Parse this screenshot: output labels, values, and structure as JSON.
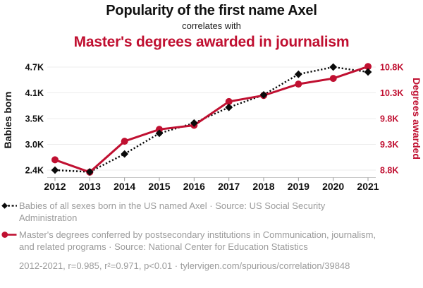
{
  "header": {
    "title": "Popularity of the first name Axel",
    "subtitle": "correlates with",
    "secondary_title": "Master's degrees awarded in journalism"
  },
  "colors": {
    "red": "#c01031",
    "series_black": "#0a0a0a",
    "gray_text": "#9b9b9b",
    "grid": "#ececec",
    "axis_line": "#c9c9c9"
  },
  "chart_data": {
    "type": "line",
    "x": [
      2012,
      2013,
      2014,
      2015,
      2016,
      2017,
      2018,
      2019,
      2020,
      2021
    ],
    "series": [
      {
        "name": "Babies of all sexes born in the US named Axel",
        "axis": "left",
        "style": "dashed-diamond",
        "color": "#0a0a0a",
        "values": [
          2400,
          2360,
          2760,
          3220,
          3450,
          3800,
          4080,
          4540,
          4700,
          4590
        ]
      },
      {
        "name": "Master's degrees conferred in Communication, journalism, and related programs",
        "axis": "right",
        "style": "solid-circle",
        "color": "#c01031",
        "values": [
          9000,
          8760,
          9360,
          9590,
          9670,
          10130,
          10250,
          10470,
          10580,
          10810
        ]
      }
    ],
    "left_axis": {
      "title": "Babies born",
      "min": 2400,
      "max": 4700,
      "ticks": [
        {
          "value": 2400,
          "label": "2.4K"
        },
        {
          "value": 2975,
          "label": "3.0K"
        },
        {
          "value": 3550,
          "label": "3.5K"
        },
        {
          "value": 4125,
          "label": "4.1K"
        },
        {
          "value": 4700,
          "label": "4.7K"
        }
      ]
    },
    "right_axis": {
      "title": "Degrees awarded",
      "min": 8800,
      "max": 10800,
      "ticks": [
        {
          "value": 8800,
          "label": "8.8K"
        },
        {
          "value": 9300,
          "label": "9.3K"
        },
        {
          "value": 9800,
          "label": "9.8K"
        },
        {
          "value": 10300,
          "label": "10.3K"
        },
        {
          "value": 10800,
          "label": "10.8K"
        }
      ]
    },
    "grid": "horizontal-only",
    "legend_position": "bottom"
  },
  "legend": {
    "items": [
      {
        "icon": "black-diamond-dashed-line",
        "label": "Babies of all sexes born in the US named Axel · Source: US Social Security Administration"
      },
      {
        "icon": "red-circle-solid-line",
        "label": "Master's degrees conferred by postsecondary institutions in Communication, journalism, and related programs · Source: National Center for Education Statistics"
      }
    ],
    "footer": "2012-2021, r=0.985, r²=0.971, p<0.01 · tylervigen.com/spurious/correlation/39848"
  }
}
